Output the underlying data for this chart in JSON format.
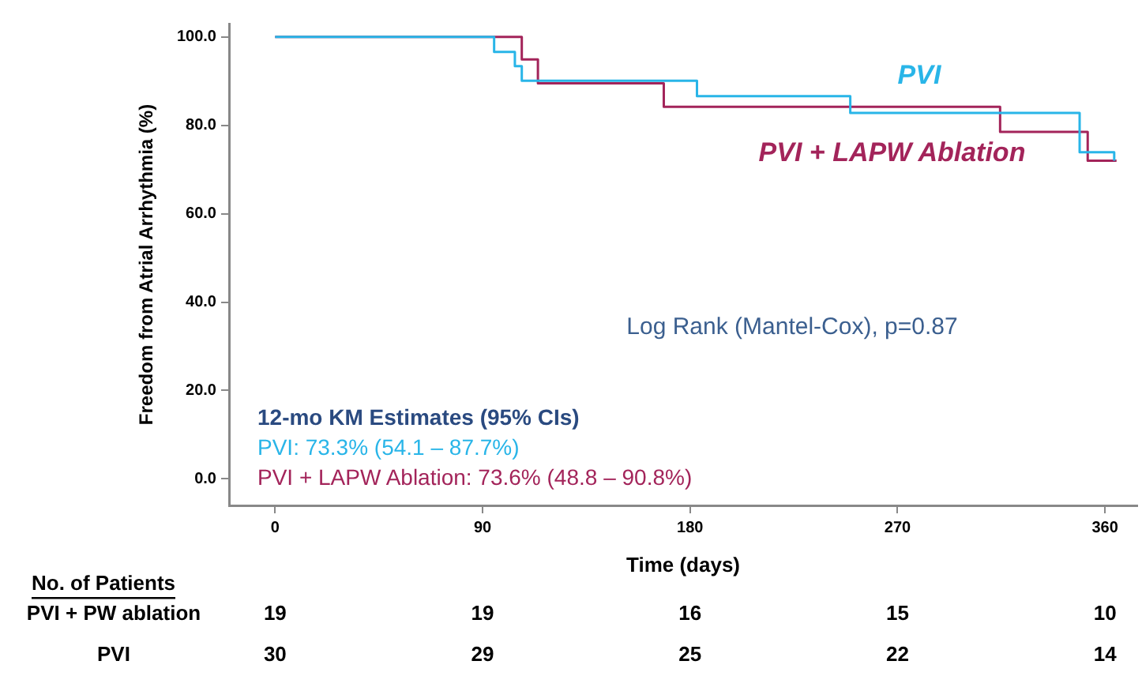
{
  "chart_data": {
    "type": "step",
    "xlabel": "Time (days)",
    "ylabel": "Freedom from Atrial Arrhythmia (%)",
    "series": [
      {
        "name": "PVI",
        "color": "#29b5e8",
        "x": [
          0,
          95,
          104,
          107,
          183,
          249.5,
          349,
          364
        ],
        "values": [
          100,
          96.6,
          93.4,
          90.1,
          86.6,
          82.8,
          73.9,
          72.0
        ]
      },
      {
        "name": "PVI + LAPW Ablation",
        "color": "#a3245a",
        "x": [
          0,
          107,
          114,
          168.6,
          314.5,
          352.5,
          365
        ],
        "values": [
          100,
          94.9,
          89.5,
          84.2,
          78.5,
          72.0,
          72.0
        ]
      }
    ],
    "xlim": [
      -20,
      374
    ],
    "xticks": [
      0,
      90,
      180,
      270,
      360
    ],
    "ylim": [
      -6,
      103
    ],
    "yticks": [
      {
        "value": 0,
        "label": "0.0"
      },
      {
        "value": 20,
        "label": "20.0"
      },
      {
        "value": 40,
        "label": "40.0"
      },
      {
        "value": 60,
        "label": "60.0"
      },
      {
        "value": 80,
        "label": "80.0"
      },
      {
        "value": 100,
        "label": "100.0"
      }
    ],
    "grid": false,
    "legend": false,
    "marker": "none",
    "line_style": "solid",
    "annotations": [
      "Log Rank (Mantel-Cox), p=0.87",
      "12-mo KM Estimates (95% CIs)",
      "PVI: 73.3% (54.1 – 87.7%)",
      "PVI + LAPW Ablation: 73.6% (48.8 – 90.8%)",
      "No. of Patients",
      "PVI + PW ablation",
      "19",
      "19",
      "16",
      "15",
      "10",
      "PVI",
      "30",
      "29",
      "25",
      "22",
      "14"
    ]
  }
}
